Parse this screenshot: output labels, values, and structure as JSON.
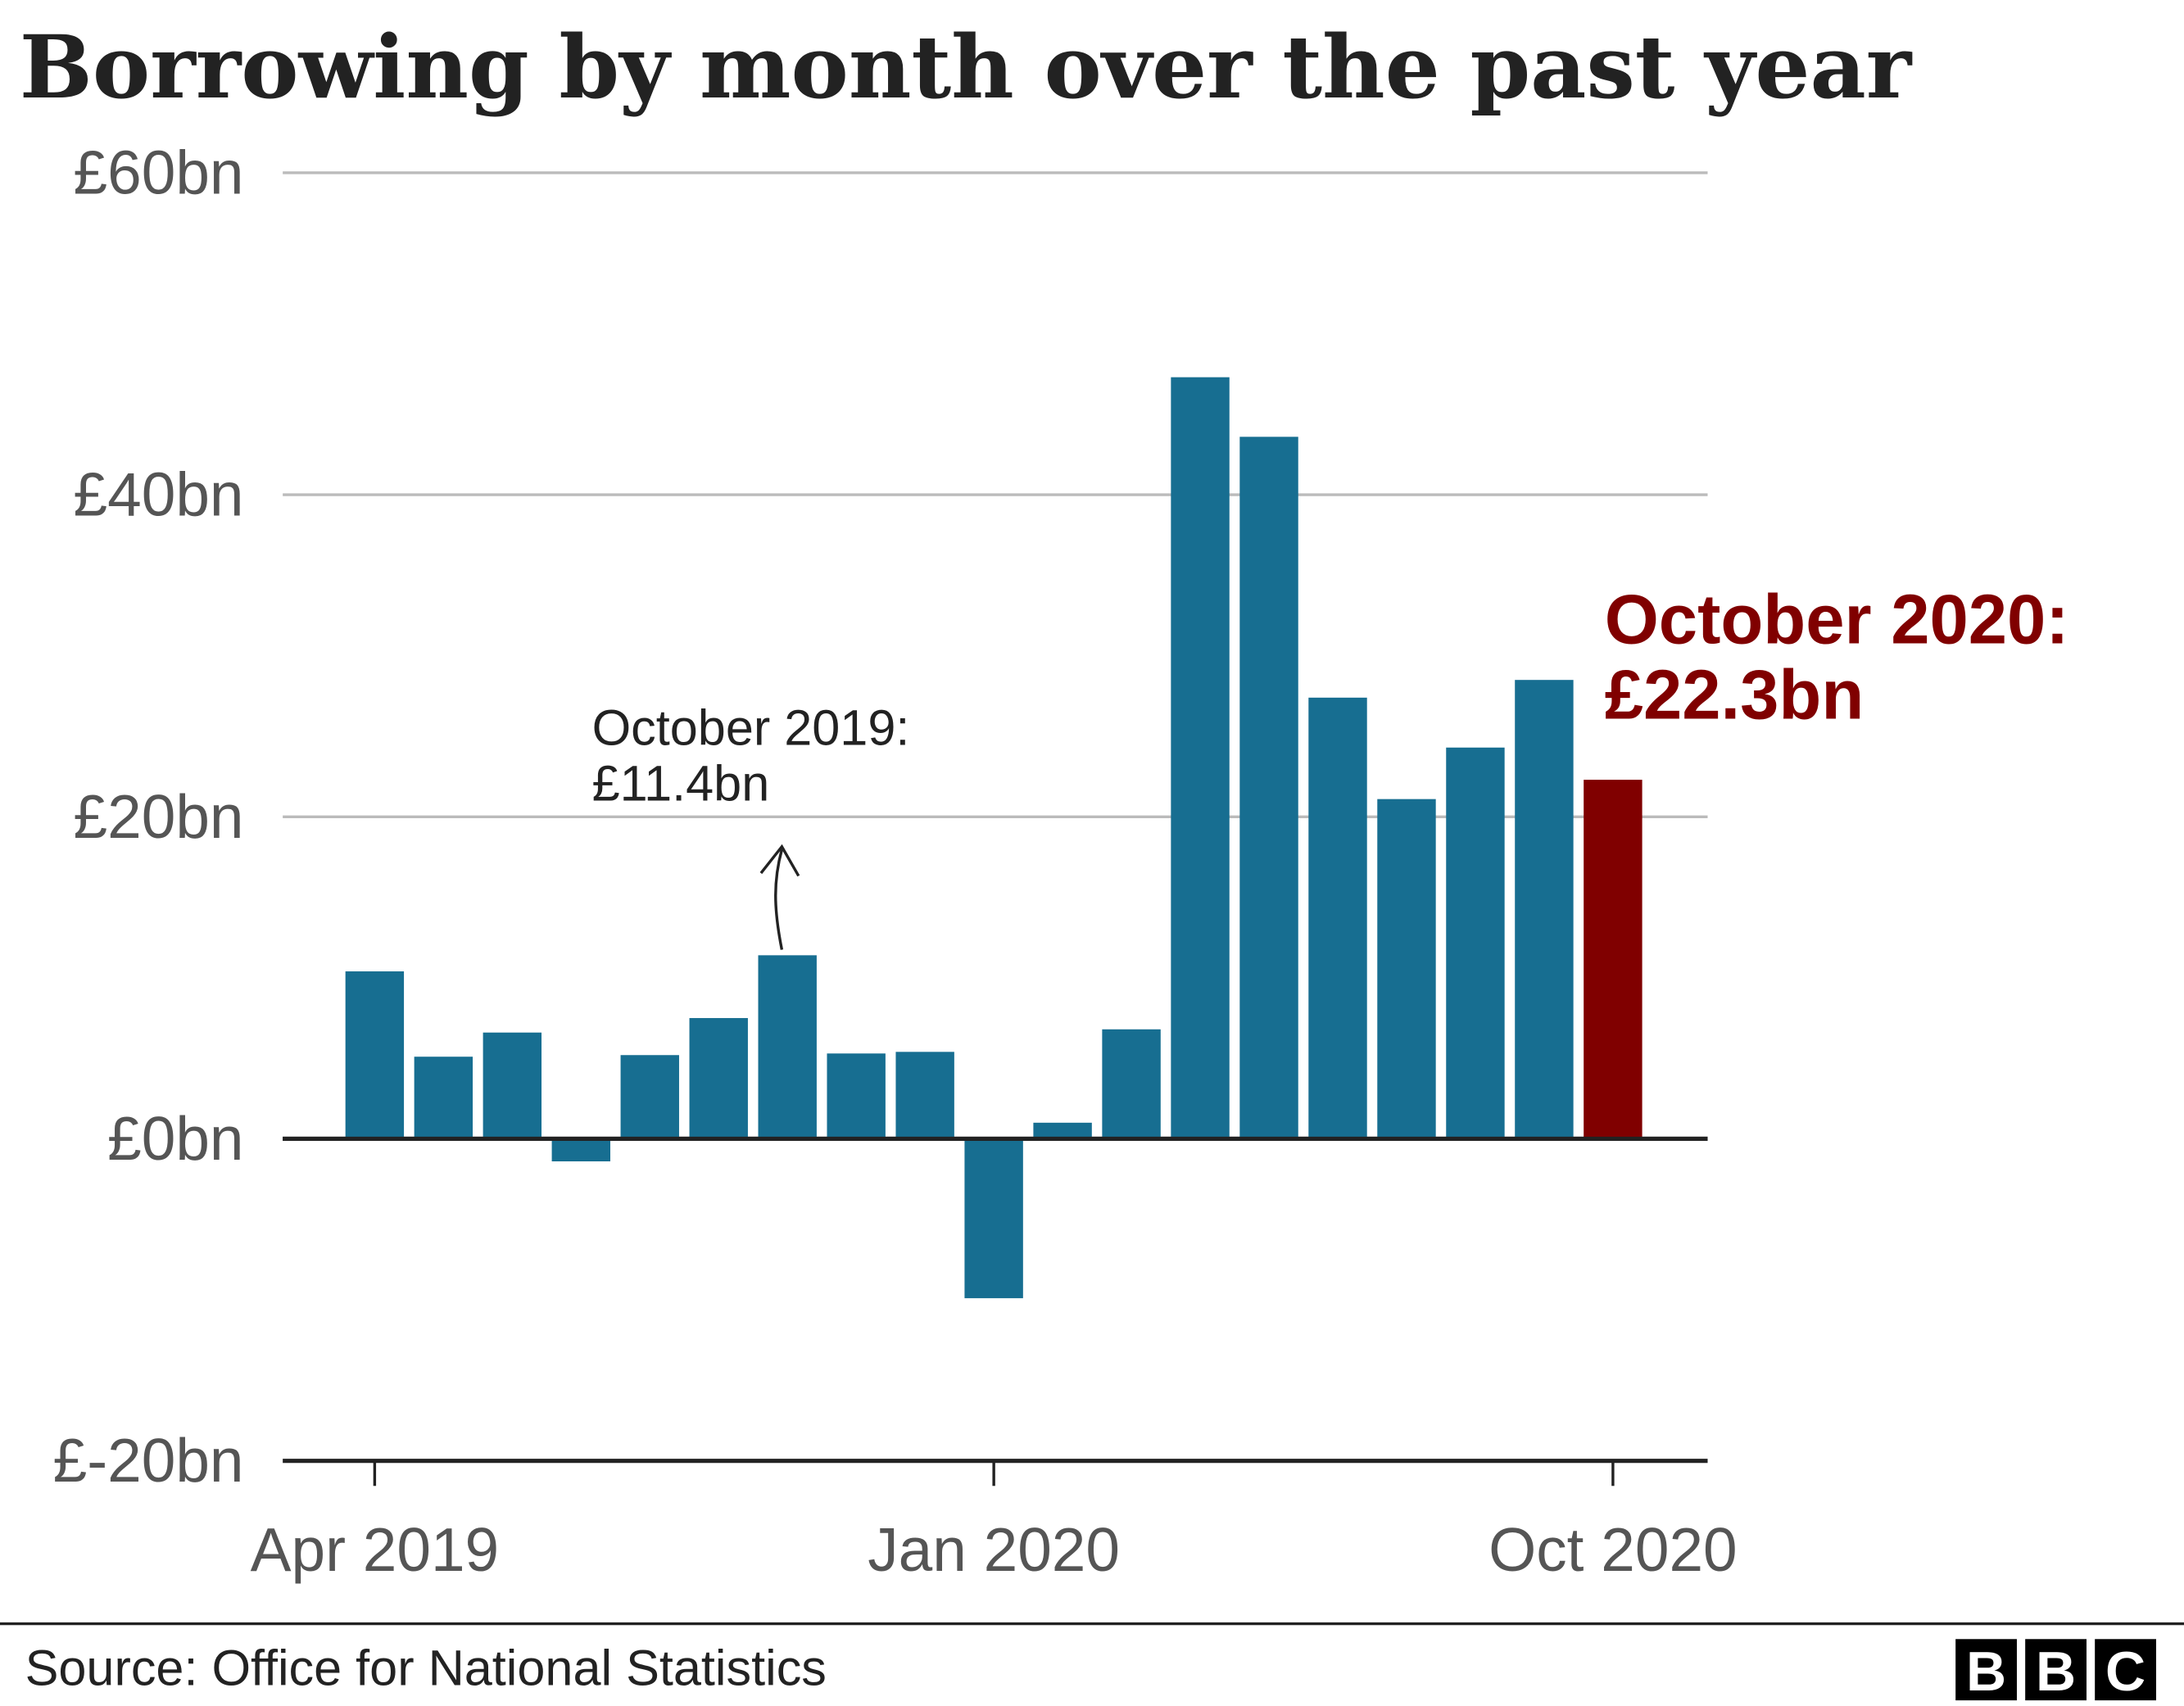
{
  "chart_data": {
    "type": "bar",
    "title": "Borrowing by month over the past year",
    "categories": [
      "Apr 2019",
      "May 2019",
      "Jun 2019",
      "Jul 2019",
      "Aug 2019",
      "Sep 2019",
      "Oct 2019",
      "Nov 2019",
      "Dec 2019",
      "Jan 2020",
      "Feb 2020",
      "Mar 2020",
      "Apr 2020",
      "May 2020",
      "Jun 2020",
      "Jul 2020",
      "Aug 2020",
      "Sep 2020",
      "Oct 2020"
    ],
    "values": [
      10.4,
      5.1,
      6.6,
      -1.4,
      5.2,
      7.5,
      11.4,
      5.3,
      5.4,
      -9.9,
      1.0,
      6.8,
      47.3,
      43.6,
      27.4,
      21.1,
      24.3,
      28.5,
      22.3
    ],
    "ylim": [
      -20,
      60
    ],
    "yticks": [
      -20,
      0,
      20,
      40,
      60
    ],
    "ytick_labels": [
      "£-20bn",
      "£0bn",
      "£20bn",
      "£40bn",
      "£60bn"
    ],
    "xtick_labels": [
      {
        "category": "Apr 2019",
        "label": "Apr 2019"
      },
      {
        "category": "Jan 2020",
        "label": "Jan 2020"
      },
      {
        "category": "Oct 2020",
        "label": "Oct 2020"
      }
    ],
    "grid": true,
    "colors": {
      "bar": "#176e91",
      "highlight": "#800000",
      "grid": "#bbbbbb",
      "axis": "#222222"
    },
    "highlight_category": "Oct 2020",
    "annotations": [
      {
        "category": "Oct 2019",
        "lines": [
          "October 2019:",
          "£11.4bn"
        ],
        "arrow": true
      },
      {
        "category": "Oct 2020",
        "lines": [
          "October 2020:",
          "£22.3bn"
        ],
        "style": "highlight"
      }
    ]
  },
  "footer": {
    "source": "Source: Office for National Statistics",
    "logo": "BBC"
  }
}
